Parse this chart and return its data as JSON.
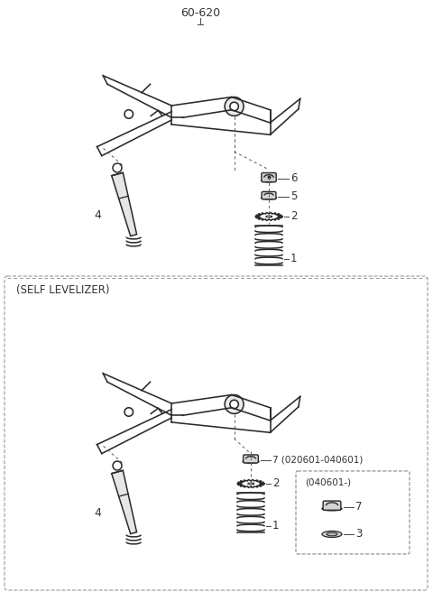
{
  "bg_color": "#ffffff",
  "line_color": "#2a2a2a",
  "dim_color": "#555555",
  "title": "60-620",
  "section2_label": "(SELF LEVELIZER)",
  "part_labels": {
    "1": "1",
    "2": "2",
    "3": "3",
    "4": "4",
    "5": "5",
    "6": "6",
    "7a": "7 (020601-040601)",
    "subbox": "(040601-)"
  },
  "fig_w": 4.8,
  "fig_h": 6.56,
  "dpi": 100
}
